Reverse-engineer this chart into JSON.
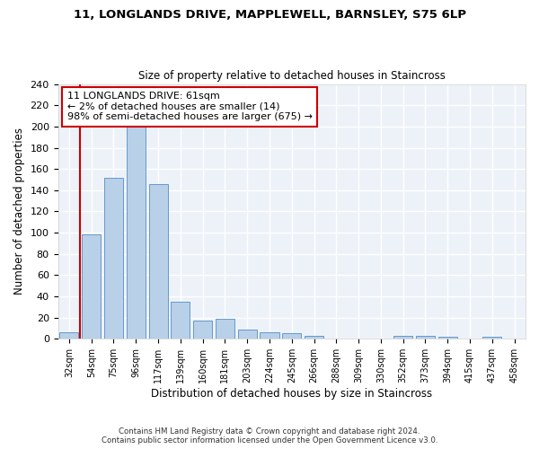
{
  "title": "11, LONGLANDS DRIVE, MAPPLEWELL, BARNSLEY, S75 6LP",
  "subtitle": "Size of property relative to detached houses in Staincross",
  "xlabel": "Distribution of detached houses by size in Staincross",
  "ylabel": "Number of detached properties",
  "bar_color": "#b8d0e8",
  "bar_edge_color": "#6699cc",
  "background_color": "#edf2f9",
  "grid_color": "#ffffff",
  "categories": [
    "32sqm",
    "54sqm",
    "75sqm",
    "96sqm",
    "117sqm",
    "139sqm",
    "160sqm",
    "181sqm",
    "203sqm",
    "224sqm",
    "245sqm",
    "266sqm",
    "288sqm",
    "309sqm",
    "330sqm",
    "352sqm",
    "373sqm",
    "394sqm",
    "415sqm",
    "437sqm",
    "458sqm"
  ],
  "values": [
    6,
    98,
    152,
    200,
    146,
    35,
    17,
    19,
    9,
    6,
    5,
    3,
    0,
    0,
    0,
    3,
    3,
    2,
    0,
    2,
    0
  ],
  "ylim": [
    0,
    240
  ],
  "yticks": [
    0,
    20,
    40,
    60,
    80,
    100,
    120,
    140,
    160,
    180,
    200,
    220,
    240
  ],
  "annotation_line1": "11 LONGLANDS DRIVE: 61sqm",
  "annotation_line2": "← 2% of detached houses are smaller (14)",
  "annotation_line3": "98% of semi-detached houses are larger (675) →",
  "annotation_box_color": "#ffffff",
  "annotation_border_color": "#cc0000",
  "property_line_color": "#cc0000",
  "footer_line1": "Contains HM Land Registry data © Crown copyright and database right 2024.",
  "footer_line2": "Contains public sector information licensed under the Open Government Licence v3.0."
}
